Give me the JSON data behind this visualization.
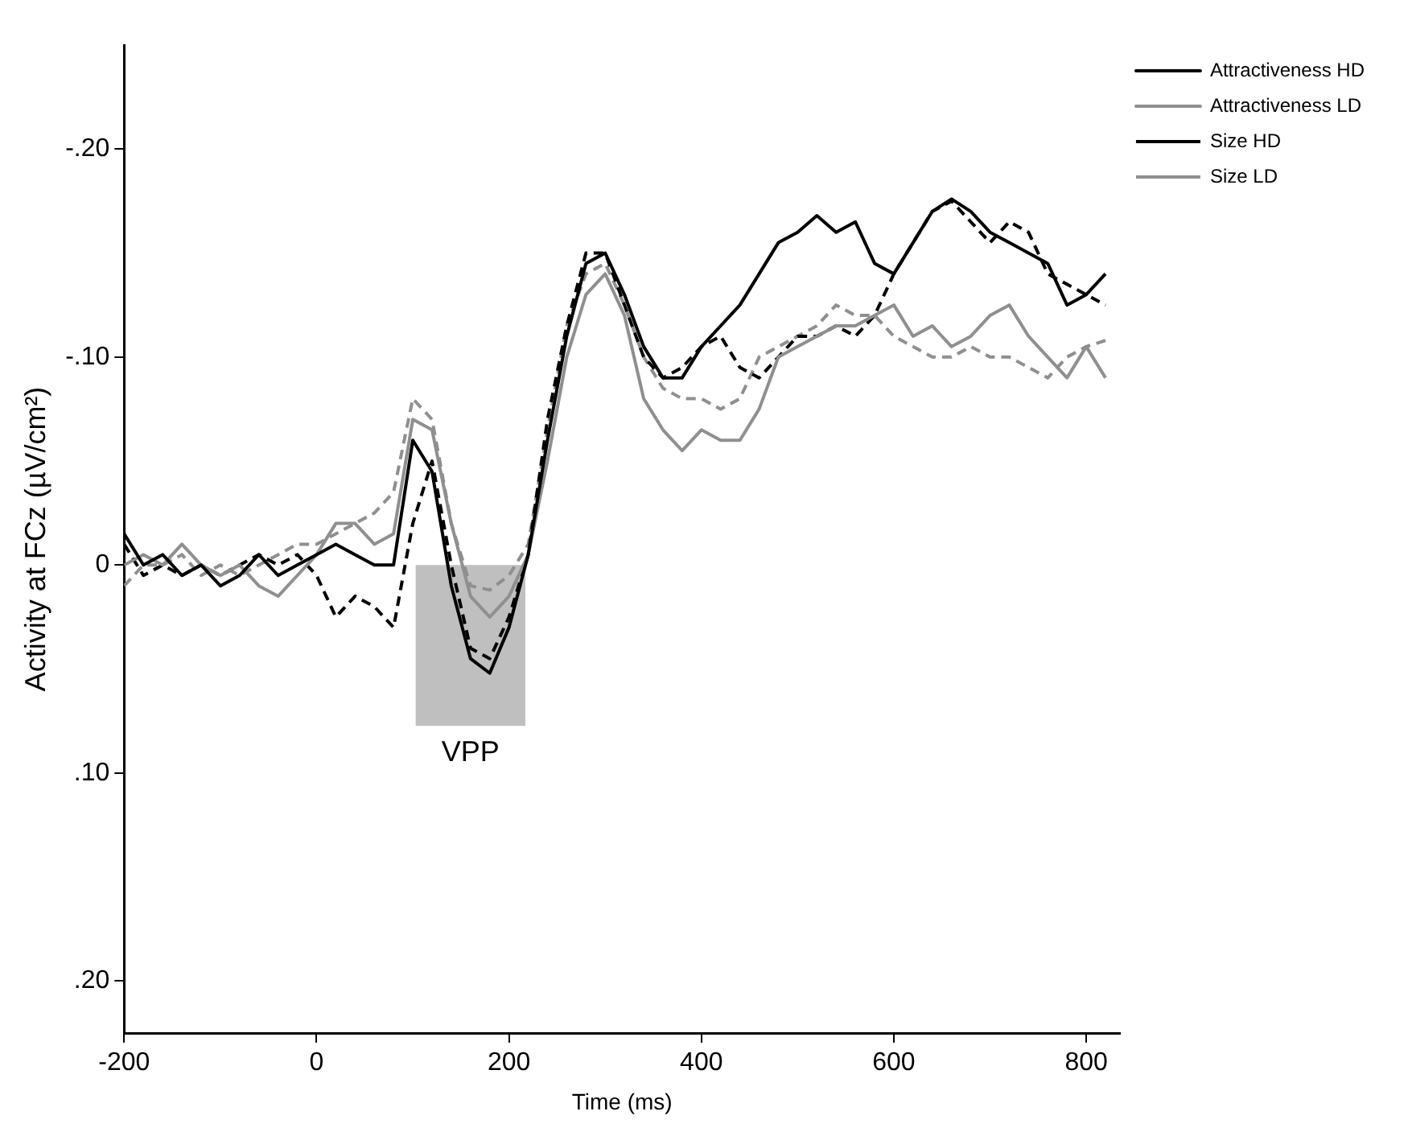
{
  "chart_data": {
    "type": "line",
    "xlabel": "Time (ms)",
    "ylabel": "Activity at FCz (µV/cm²)",
    "x": [
      -200,
      -180,
      -160,
      -140,
      -120,
      -100,
      -80,
      -60,
      -40,
      -20,
      0,
      20,
      40,
      60,
      80,
      100,
      120,
      140,
      160,
      180,
      200,
      220,
      240,
      260,
      280,
      300,
      320,
      340,
      360,
      380,
      400,
      420,
      440,
      460,
      480,
      500,
      520,
      540,
      560,
      580,
      600,
      620,
      640,
      660,
      680,
      700,
      720,
      740,
      760,
      780,
      800,
      820
    ],
    "series": [
      {
        "name": "Attractiveness HD",
        "color": "#000000",
        "line_style": "solid",
        "values": [
          -0.015,
          0.0,
          -0.005,
          0.005,
          0.0,
          0.01,
          0.005,
          -0.005,
          0.005,
          0.0,
          -0.005,
          -0.01,
          -0.005,
          0.0,
          0.0,
          -0.06,
          -0.045,
          0.01,
          0.045,
          0.052,
          0.03,
          -0.005,
          -0.06,
          -0.11,
          -0.145,
          -0.15,
          -0.13,
          -0.105,
          -0.09,
          -0.09,
          -0.105,
          -0.115,
          -0.125,
          -0.14,
          -0.155,
          -0.16,
          -0.168,
          -0.16,
          -0.165,
          -0.145,
          -0.14,
          -0.155,
          -0.17,
          -0.176,
          -0.17,
          -0.16,
          -0.155,
          -0.15,
          -0.145,
          -0.125,
          -0.13,
          -0.14
        ]
      },
      {
        "name": "Attractiveness LD",
        "color": "#8f8f8f",
        "line_style": "solid",
        "values": [
          0.0,
          -0.005,
          0.0,
          -0.01,
          0.0,
          0.005,
          0.0,
          0.01,
          0.015,
          0.005,
          -0.005,
          -0.02,
          -0.02,
          -0.01,
          -0.015,
          -0.07,
          -0.065,
          -0.02,
          0.015,
          0.025,
          0.015,
          -0.005,
          -0.05,
          -0.1,
          -0.13,
          -0.14,
          -0.12,
          -0.08,
          -0.065,
          -0.055,
          -0.065,
          -0.06,
          -0.06,
          -0.075,
          -0.1,
          -0.105,
          -0.11,
          -0.115,
          -0.115,
          -0.12,
          -0.125,
          -0.11,
          -0.115,
          -0.105,
          -0.11,
          -0.12,
          -0.125,
          -0.11,
          -0.1,
          -0.09,
          -0.105,
          -0.09
        ]
      },
      {
        "name": "Size HD",
        "color": "#000000",
        "line_style": "dashed",
        "values": [
          -0.01,
          0.005,
          0.0,
          0.005,
          0.0,
          0.005,
          0.0,
          -0.005,
          0.0,
          -0.005,
          0.005,
          0.025,
          0.015,
          0.02,
          0.03,
          -0.02,
          -0.05,
          0.0,
          0.04,
          0.045,
          0.025,
          -0.005,
          -0.07,
          -0.115,
          -0.15,
          -0.15,
          -0.125,
          -0.1,
          -0.09,
          -0.095,
          -0.105,
          -0.11,
          -0.095,
          -0.09,
          -0.1,
          -0.11,
          -0.11,
          -0.115,
          -0.11,
          -0.12,
          -0.14,
          -0.155,
          -0.17,
          -0.175,
          -0.165,
          -0.155,
          -0.165,
          -0.16,
          -0.14,
          -0.135,
          -0.13,
          -0.125
        ]
      },
      {
        "name": "Size LD",
        "color": "#8f8f8f",
        "line_style": "dashed",
        "values": [
          0.01,
          0.0,
          0.0,
          -0.005,
          0.005,
          0.0,
          0.005,
          0.0,
          -0.005,
          -0.01,
          -0.01,
          -0.015,
          -0.02,
          -0.025,
          -0.035,
          -0.08,
          -0.07,
          -0.02,
          0.01,
          0.012,
          0.005,
          -0.01,
          -0.065,
          -0.115,
          -0.14,
          -0.145,
          -0.125,
          -0.1,
          -0.085,
          -0.08,
          -0.08,
          -0.075,
          -0.08,
          -0.1,
          -0.105,
          -0.11,
          -0.115,
          -0.125,
          -0.12,
          -0.12,
          -0.11,
          -0.105,
          -0.1,
          -0.1,
          -0.105,
          -0.1,
          -0.1,
          -0.095,
          -0.09,
          -0.1,
          -0.105,
          -0.108
        ]
      }
    ],
    "xlim": [
      -200,
      835
    ],
    "xticks": [
      -200,
      0,
      200,
      400,
      600,
      800
    ],
    "ylim": [
      0.225,
      -0.25
    ],
    "yticks": [
      {
        "value": -0.2,
        "label": "-.20"
      },
      {
        "value": -0.1,
        "label": "-.10"
      },
      0,
      {
        "value": 0.1,
        "label": ".10"
      },
      {
        "value": 0.2,
        "label": ".20"
      }
    ],
    "bands": [
      {
        "axis": "x",
        "from": 103,
        "to": 217,
        "label": "VPP",
        "color": "#bfbfbf"
      }
    ],
    "legend": "top right",
    "grid": false,
    "marker": "none"
  }
}
